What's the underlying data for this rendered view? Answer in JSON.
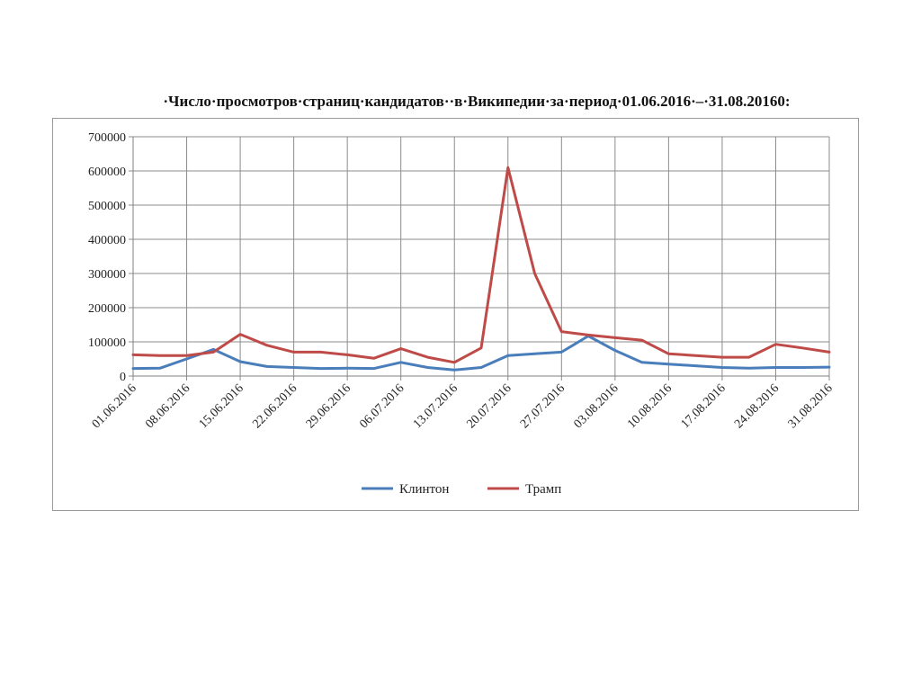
{
  "chart_data": {
    "type": "line",
    "title": "·Число·просмотров·страниц·кандидатов··в·Википедии·за·период·01.06.2016·–·31.08.20160:",
    "xlabel": "",
    "ylabel": "",
    "ylim": [
      0,
      700000
    ],
    "y_ticks": [
      "0",
      "100000",
      "200000",
      "300000",
      "400000",
      "500000",
      "600000",
      "700000"
    ],
    "x_tick_labels": [
      "01.06.2016",
      "08.06.2016",
      "15.06.2016",
      "22.06.2016",
      "29.06.2016",
      "06.07.2016",
      "13.07.2016",
      "20.07.2016",
      "27.07.2016",
      "03.08.2016",
      "10.08.2016",
      "17.08.2016",
      "24.08.2016",
      "31.08.2016"
    ],
    "x": [
      "01.06.2016",
      "04.06.2016",
      "08.06.2016",
      "11.06.2016",
      "15.06.2016",
      "18.06.2016",
      "22.06.2016",
      "25.06.2016",
      "29.06.2016",
      "02.07.2016",
      "06.07.2016",
      "09.07.2016",
      "13.07.2016",
      "16.07.2016",
      "20.07.2016",
      "23.07.2016",
      "27.07.2016",
      "30.07.2016",
      "03.08.2016",
      "06.08.2016",
      "10.08.2016",
      "13.08.2016",
      "17.08.2016",
      "20.08.2016",
      "24.08.2016",
      "27.08.2016",
      "31.08.2016"
    ],
    "series": [
      {
        "name": "Клинтон",
        "color": "#4a7ebb",
        "values": [
          22000,
          23000,
          50000,
          78000,
          42000,
          28000,
          25000,
          22000,
          23000,
          22000,
          40000,
          25000,
          18000,
          25000,
          60000,
          65000,
          70000,
          117000,
          75000,
          40000,
          35000,
          30000,
          25000,
          23000,
          25000,
          25000,
          26000
        ]
      },
      {
        "name": "Трамп",
        "color": "#be4b48",
        "values": [
          62000,
          60000,
          60000,
          70000,
          122000,
          90000,
          70000,
          70000,
          62000,
          52000,
          80000,
          55000,
          40000,
          82000,
          610000,
          300000,
          130000,
          120000,
          112000,
          105000,
          65000,
          60000,
          55000,
          55000,
          93000,
          82000,
          70000
        ]
      }
    ],
    "grid": true,
    "legend_position": "bottom"
  }
}
